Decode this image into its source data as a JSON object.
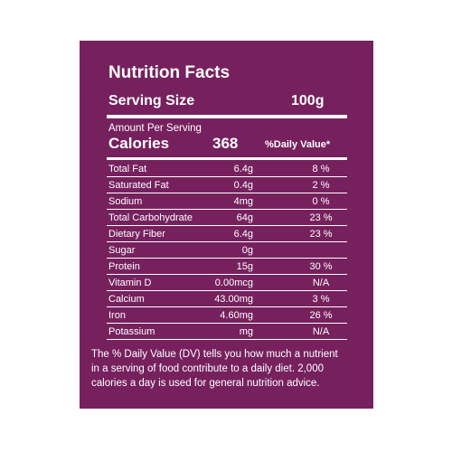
{
  "label": {
    "title": "Nutrition Facts",
    "serving_size_label": "Serving Size",
    "serving_size": "100g",
    "amount_per_serving": "Amount Per Serving",
    "calories_label": "Calories",
    "calories": "368",
    "daily_value_header": "%Daily Value*",
    "rows": [
      {
        "name": "Total Fat",
        "amount": "6.4g",
        "dv": "8 %"
      },
      {
        "name": "Saturated Fat",
        "amount": "0.4g",
        "dv": "2 %"
      },
      {
        "name": "Sodium",
        "amount": "4mg",
        "dv": "0 %"
      },
      {
        "name": "Total Carbohydrate",
        "amount": "64g",
        "dv": "23 %"
      },
      {
        "name": "Dietary Fiber",
        "amount": "6.4g",
        "dv": "23 %"
      },
      {
        "name": "Sugar",
        "amount": "0g"
      },
      {
        "name": "Protein",
        "amount": "15g",
        "dv": "30 %"
      },
      {
        "name": "Vitamin D",
        "amount": "0.00mcg",
        "dv": "N/A"
      },
      {
        "name": "Calcium",
        "amount": "43.00mg",
        "dv": "3 %"
      },
      {
        "name": "Iron",
        "amount": "4.60mg",
        "dv": "26 %"
      },
      {
        "name": "Potassium",
        "amount": "mg",
        "dv": "N/A"
      }
    ],
    "footnote": [
      "The % Daily Value (DV) tells you how much a nutrient",
      "in a serving of food contribute to a daily diet. 2,000",
      "calories a day is used for general nutrition advice."
    ]
  }
}
